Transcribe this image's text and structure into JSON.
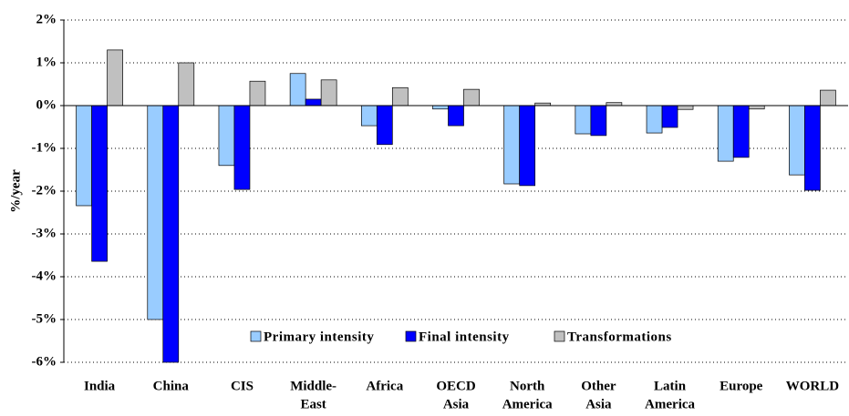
{
  "chart_data": {
    "type": "bar",
    "y_label": "%/year",
    "categories": [
      [
        "India"
      ],
      [
        "China"
      ],
      [
        "CIS"
      ],
      [
        "Middle-",
        "East"
      ],
      [
        "Africa"
      ],
      [
        "OECD",
        "Asia"
      ],
      [
        "North",
        "America"
      ],
      [
        "Other",
        "Asia"
      ],
      [
        "Latin",
        "America"
      ],
      [
        "Europe"
      ],
      [
        "WORLD"
      ]
    ],
    "series": [
      {
        "name": "Primary intensity",
        "color": "#99ccff",
        "values": [
          -2.34,
          -5.0,
          -1.4,
          0.75,
          -0.47,
          -0.08,
          -1.83,
          -0.66,
          -0.64,
          -1.3,
          -1.62
        ]
      },
      {
        "name": "Final intensity",
        "color": "#0000ff",
        "values": [
          -3.64,
          -6.0,
          -1.96,
          0.15,
          -0.91,
          -0.47,
          -1.87,
          -0.7,
          -0.51,
          -1.21,
          -1.98
        ]
      },
      {
        "name": "Transformations",
        "color": "#c0c0c0",
        "values": [
          1.3,
          1.0,
          0.57,
          0.6,
          0.42,
          0.38,
          0.06,
          0.07,
          -0.09,
          -0.08,
          0.36
        ]
      }
    ],
    "ylim": [
      -6,
      2
    ],
    "yticks": [
      {
        "value": -6,
        "label": "-6%"
      },
      {
        "value": -5,
        "label": "-5%"
      },
      {
        "value": -4,
        "label": "-4%"
      },
      {
        "value": -3,
        "label": "-3%"
      },
      {
        "value": -2,
        "label": "-2%"
      },
      {
        "value": -1,
        "label": "-1%"
      },
      {
        "value": 0,
        "label": "0%"
      },
      {
        "value": 1,
        "label": "1%"
      },
      {
        "value": 2,
        "label": "2%"
      }
    ],
    "grid": true,
    "legend": "bottom"
  }
}
